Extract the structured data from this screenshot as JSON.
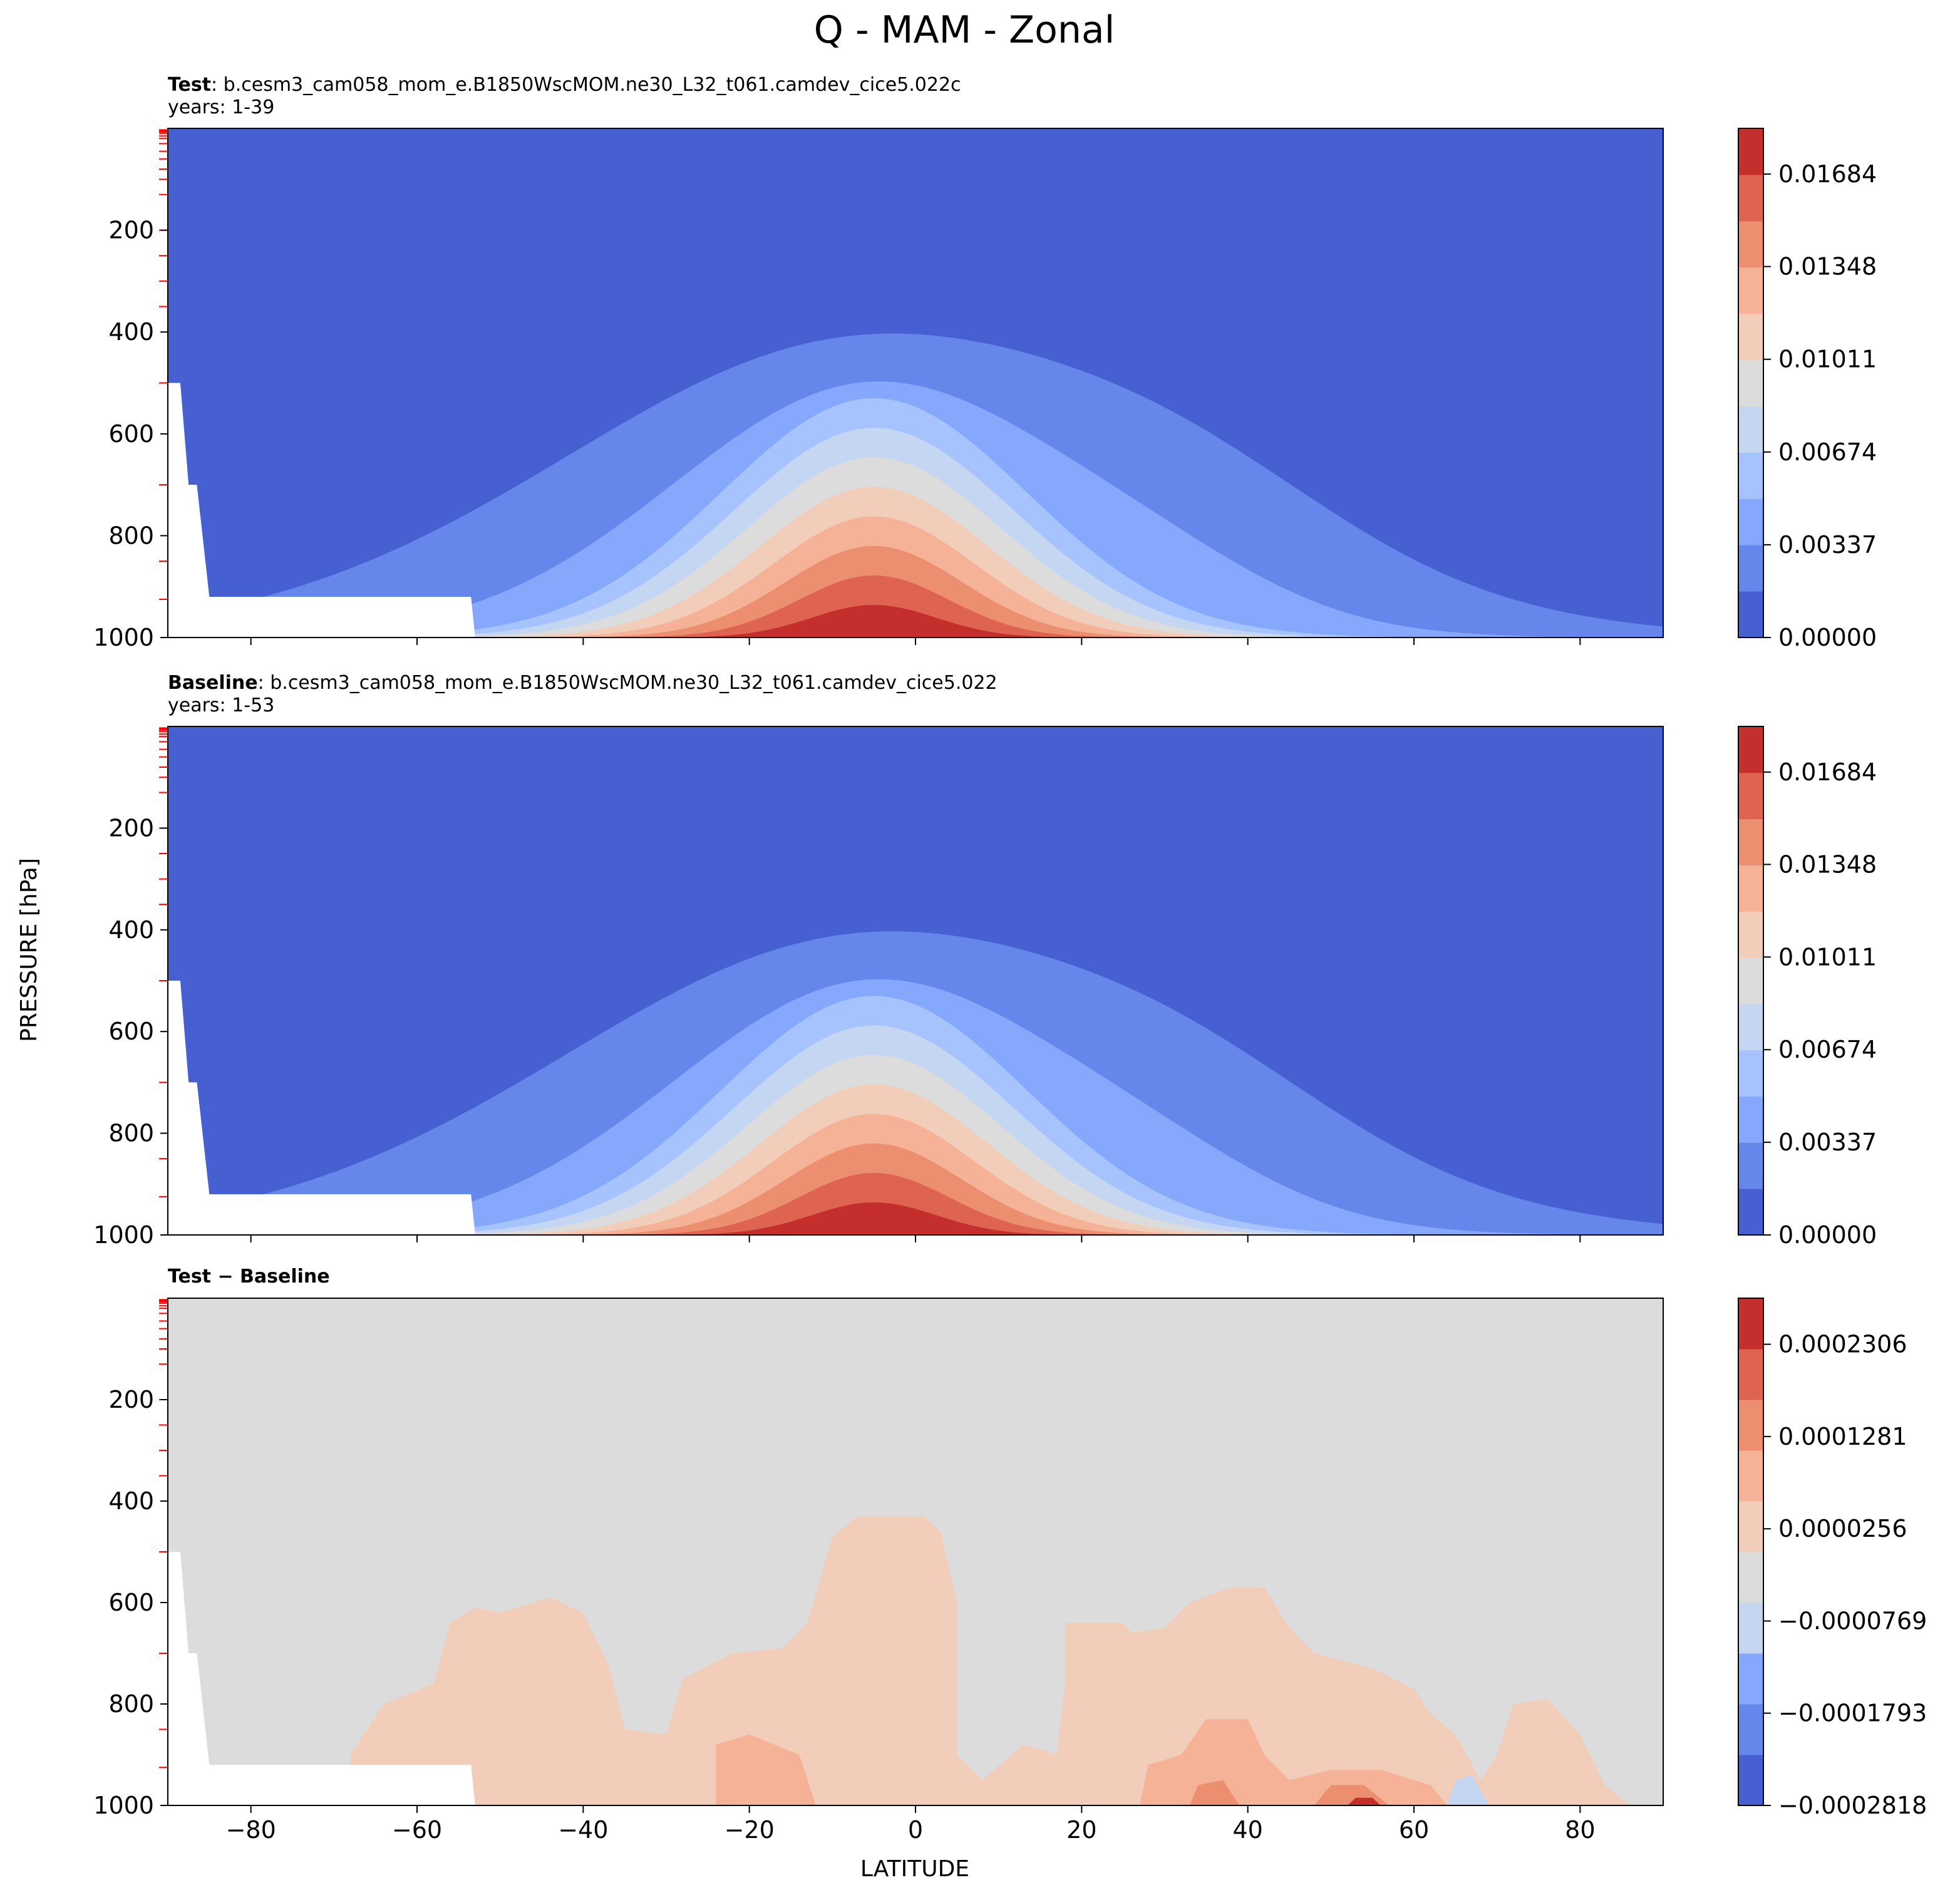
{
  "figure": {
    "title": "Q - MAM - Zonal",
    "ylabel": "PRESSURE [hPa]",
    "xlabel": "LATITUDE"
  },
  "colors": {
    "test_levels": [
      "#4760d1",
      "#6586ea",
      "#86a8fc",
      "#a6c3fd",
      "#c5d6f2",
      "#dcdcdc",
      "#f1cdba",
      "#f5b296",
      "#ec8f71",
      "#de6350",
      "#c42f2d"
    ],
    "diff_levels": [
      "#4760d1",
      "#6586ea",
      "#86a8fc",
      "#c5d6f2",
      "#dcdcdc",
      "#f1cdba",
      "#f5b296",
      "#ec8f71",
      "#de6350",
      "#c42f2d"
    ],
    "missing": "#ffffff",
    "red_ticks": "#ff0000"
  },
  "chart_data": [
    {
      "type": "contour",
      "panel": "test",
      "label_bold": "Test",
      "label_text": ":  b.cesm3_cam058_mom_e.B1850WscMOM.ne30_L32_t061.camdev_cice5.022c",
      "years": "years: 1-39",
      "xlim": [
        -90,
        90
      ],
      "ylim": [
        1000,
        0
      ],
      "yticks": [
        "200",
        "400",
        "600",
        "800",
        "1000"
      ],
      "colorbar_ticks": [
        "0.00000",
        "0.00337",
        "0.00674",
        "0.01011",
        "0.01348",
        "0.01684"
      ],
      "colorbar_range": [
        0.0,
        0.0185
      ]
    },
    {
      "type": "contour",
      "panel": "baseline",
      "label_bold": "Baseline",
      "label_text": ":  b.cesm3_cam058_mom_e.B1850WscMOM.ne30_L32_t061.camdev_cice5.022",
      "years": "years: 1-53",
      "xlim": [
        -90,
        90
      ],
      "ylim": [
        1000,
        0
      ],
      "yticks": [
        "200",
        "400",
        "600",
        "800",
        "1000"
      ],
      "colorbar_ticks": [
        "0.00000",
        "0.00337",
        "0.00674",
        "0.01011",
        "0.01348",
        "0.01684"
      ],
      "colorbar_range": [
        0.0,
        0.0185
      ]
    },
    {
      "type": "contour",
      "panel": "diff",
      "label_bold": "Test − Baseline",
      "xlim": [
        -90,
        90
      ],
      "ylim": [
        1000,
        0
      ],
      "xticks": [
        "−80",
        "−60",
        "−40",
        "−20",
        "0",
        "20",
        "40",
        "60",
        "80"
      ],
      "yticks": [
        "200",
        "400",
        "600",
        "800",
        "1000"
      ],
      "colorbar_ticks": [
        "−0.0002818",
        "−0.0001793",
        "−0.0000769",
        "0.0000256",
        "0.0001281",
        "0.0002306"
      ],
      "colorbar_range": [
        -0.0002818,
        0.0002818
      ]
    }
  ]
}
